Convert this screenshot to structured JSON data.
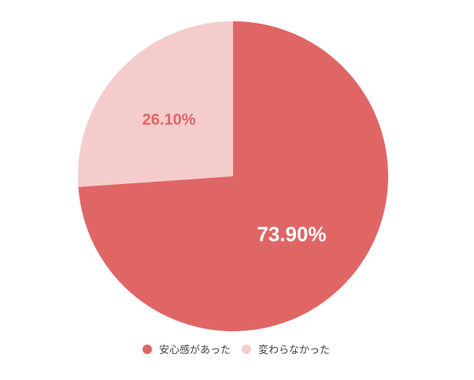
{
  "chart_data": {
    "type": "pie",
    "slices": [
      {
        "label": "安心感があった",
        "value": 73.9,
        "display": "73.90%",
        "color": "#e06666",
        "label_color": "#ffffff"
      },
      {
        "label": "変わらなかった",
        "value": 26.1,
        "display": "26.10%",
        "color": "#f4cccc",
        "label_color": "#e06666"
      }
    ],
    "start_angle": "top",
    "direction": "clockwise",
    "legend_position": "bottom"
  }
}
